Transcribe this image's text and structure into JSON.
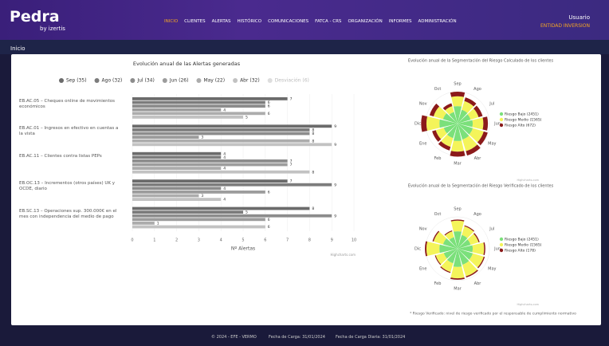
{
  "header": {
    "logo": "Pedra",
    "logo_sub": "by izertis",
    "nav": [
      "INICIO",
      "CLIENTES",
      "ALERTAS",
      "HISTÓRICO",
      "COMUNICACIONES",
      "FATCA - CRS",
      "ORGANIZACIÓN",
      "INFORMES",
      "ADMINISTRACIÓN"
    ],
    "user": "Usuario",
    "entity": "ENTIDAD INVERSION"
  },
  "page_title": "Inicio",
  "chart_data": [
    {
      "type": "bar",
      "orientation": "horizontal",
      "title": "Evolución anual de las Alertas generadas",
      "x_label": "Nº Alertas",
      "credit": "Highcharts.com",
      "categories": [
        "EB.AC.05 – Cheques online de movimientos económicos",
        "EB.AC.01 – Ingresos en efectivo en cuentas a la vista",
        "EB.AC.11 – Clientes contra listas PEPs",
        "EB.OC.13 – Incrementos (otros países) UK y OCDE, diario",
        "EB.SC.13 – Operaciones sup. 300.000€ en el mes con independencia del medio de pago"
      ],
      "series": [
        {
          "name": "Sep (35)",
          "color": "#6b6b6b",
          "values": [
            7,
            9,
            4,
            7,
            8
          ]
        },
        {
          "name": "Ago (32)",
          "color": "#7c7c7c",
          "values": [
            6,
            8,
            4,
            9,
            5
          ]
        },
        {
          "name": "Jul (34)",
          "color": "#8c8c8c",
          "values": [
            6,
            8,
            7,
            4,
            9
          ]
        },
        {
          "name": "Jun (26)",
          "color": "#9c9c9c",
          "values": [
            4,
            3,
            7,
            6,
            6
          ]
        },
        {
          "name": "May (22)",
          "color": "#acacac",
          "values": [
            6,
            8,
            4,
            3,
            1
          ]
        },
        {
          "name": "Abr (32)",
          "color": "#c2c2c2",
          "values": [
            5,
            9,
            8,
            4,
            6
          ]
        },
        {
          "name": "Desviación (6)",
          "color": "#dddddd",
          "hidden": true,
          "values": [
            null,
            null,
            null,
            null,
            null
          ]
        }
      ],
      "xlim": [
        0,
        10
      ],
      "xticks": [
        0,
        1,
        2,
        3,
        4,
        5,
        6,
        7,
        8,
        9,
        10
      ]
    },
    {
      "type": "polar",
      "title": "Evolución anual de la Segmentación del Riesgo Calculado de los clientes",
      "credit": "Highcharts.com",
      "categories": [
        "Sep",
        "Ago",
        "Jul",
        "Jun",
        "May",
        "Abr",
        "Mar",
        "Feb",
        "Ene",
        "Dic",
        "Nov",
        "Oct"
      ],
      "series": [
        {
          "name": "Riesgo Bajo (2451)",
          "color": "#7be07b",
          "values": [
            230,
            190,
            180,
            200,
            210,
            220,
            230,
            200,
            190,
            240,
            200,
            160
          ]
        },
        {
          "name": "Riesgo Medio (1565)",
          "color": "#f4f45a",
          "values": [
            130,
            120,
            110,
            140,
            150,
            160,
            140,
            120,
            110,
            170,
            130,
            80
          ]
        },
        {
          "name": "Riesgo Alto (672)",
          "color": "#8b1a1a",
          "values": [
            60,
            50,
            55,
            60,
            55,
            60,
            65,
            50,
            50,
            70,
            55,
            40
          ]
        }
      ],
      "ylim": [
        0,
        420
      ]
    },
    {
      "type": "polar",
      "title": "Evolución anual de la Segmentación del Riesgo Verificado de los clientes",
      "credit": "Highcharts.com",
      "note": "* Riesgo Verificado: nivel de riesgo verificado por el responsable de cumplimiento normativo",
      "categories": [
        "Sep",
        "Ago",
        "Jul",
        "Jun",
        "May",
        "Abr",
        "Mar",
        "Feb",
        "Ene",
        "Dic",
        "Nov",
        "Oct"
      ],
      "series": [
        {
          "name": "Riesgo Bajo (2451)",
          "color": "#7be07b",
          "values": [
            230,
            190,
            180,
            200,
            210,
            220,
            240,
            200,
            190,
            240,
            200,
            160
          ]
        },
        {
          "name": "Riesgo Medio (1565)",
          "color": "#f4f45a",
          "values": [
            140,
            120,
            110,
            150,
            150,
            160,
            150,
            120,
            110,
            170,
            130,
            80
          ]
        },
        {
          "name": "Riesgo Alto (178)",
          "color": "#8b1a1a",
          "values": [
            15,
            12,
            14,
            16,
            15,
            16,
            18,
            13,
            12,
            20,
            15,
            12
          ]
        }
      ],
      "ylim": [
        0,
        420
      ]
    }
  ],
  "footer": [
    "© 2024 - EFE - VERMO",
    "Fecha de Carga: 31/01/2024",
    "Fecha de Carga Diaria: 31/01/2024"
  ]
}
